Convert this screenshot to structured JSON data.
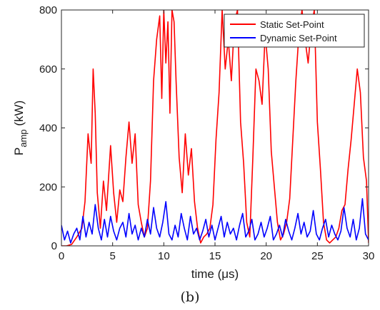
{
  "chart_data": {
    "type": "line",
    "xlabel": "time (μs)",
    "ylabel_main": "P",
    "ylabel_sub": "amp",
    "ylabel_unit": " (kW)",
    "xlim": [
      0,
      30
    ],
    "ylim": [
      0,
      800
    ],
    "xticks": [
      0,
      5,
      10,
      15,
      20,
      25,
      30
    ],
    "yticks": [
      0,
      200,
      400,
      600,
      800
    ],
    "grid": false,
    "legend_position": "top-right",
    "caption": "(b)",
    "series": [
      {
        "name": "Static Set-Point",
        "color": "#ff0000",
        "x": [
          0,
          0.5,
          1,
          1.5,
          2,
          2.3,
          2.6,
          2.9,
          3.1,
          3.3,
          3.5,
          3.8,
          4.1,
          4.4,
          4.8,
          5.1,
          5.4,
          5.7,
          6,
          6.3,
          6.6,
          6.9,
          7.2,
          7.5,
          7.8,
          8.1,
          8.4,
          8.7,
          9,
          9.3,
          9.6,
          9.8,
          10,
          10.2,
          10.4,
          10.6,
          10.8,
          11,
          11.2,
          11.5,
          11.8,
          12.1,
          12.4,
          12.7,
          13,
          13.3,
          13.6,
          13.9,
          14.2,
          14.5,
          14.8,
          15.1,
          15.4,
          15.7,
          16,
          16.3,
          16.6,
          16.9,
          17.2,
          17.5,
          17.8,
          18.1,
          18.4,
          18.7,
          19,
          19.3,
          19.6,
          19.9,
          20.2,
          20.5,
          20.8,
          21.1,
          21.4,
          21.7,
          22,
          22.3,
          22.6,
          22.9,
          23.2,
          23.5,
          23.8,
          24.1,
          24.4,
          24.7,
          25,
          25.3,
          25.6,
          25.9,
          26.2,
          26.5,
          26.8,
          27.1,
          27.4,
          27.7,
          28,
          28.3,
          28.6,
          28.9,
          29.2,
          29.5,
          29.8,
          30
        ],
        "y": [
          0,
          0,
          5,
          30,
          60,
          150,
          380,
          280,
          600,
          450,
          180,
          60,
          220,
          120,
          340,
          180,
          80,
          190,
          150,
          300,
          420,
          280,
          380,
          140,
          80,
          30,
          60,
          220,
          560,
          700,
          780,
          500,
          800,
          620,
          760,
          450,
          800,
          760,
          560,
          300,
          180,
          380,
          240,
          330,
          150,
          60,
          10,
          30,
          40,
          60,
          140,
          360,
          520,
          800,
          600,
          700,
          560,
          760,
          800,
          420,
          280,
          80,
          30,
          300,
          600,
          560,
          480,
          720,
          600,
          320,
          200,
          80,
          20,
          40,
          80,
          160,
          360,
          560,
          720,
          800,
          700,
          620,
          740,
          800,
          420,
          260,
          80,
          20,
          10,
          20,
          30,
          60,
          120,
          140,
          260,
          360,
          480,
          600,
          520,
          300,
          220,
          10
        ]
      },
      {
        "name": "Dynamic Set-Point",
        "color": "#0000ff",
        "x": [
          0,
          0.3,
          0.6,
          0.9,
          1.2,
          1.5,
          1.8,
          2.1,
          2.4,
          2.7,
          3,
          3.3,
          3.6,
          3.9,
          4.2,
          4.5,
          4.8,
          5.1,
          5.4,
          5.7,
          6,
          6.3,
          6.6,
          6.9,
          7.2,
          7.5,
          7.8,
          8.1,
          8.4,
          8.7,
          9,
          9.3,
          9.6,
          9.9,
          10.2,
          10.5,
          10.8,
          11.1,
          11.4,
          11.7,
          12,
          12.3,
          12.6,
          12.9,
          13.2,
          13.5,
          13.8,
          14.1,
          14.4,
          14.7,
          15,
          15.3,
          15.6,
          15.9,
          16.2,
          16.5,
          16.8,
          17.1,
          17.4,
          17.7,
          18,
          18.3,
          18.6,
          18.9,
          19.2,
          19.5,
          19.8,
          20.1,
          20.4,
          20.7,
          21,
          21.3,
          21.6,
          21.9,
          22.2,
          22.5,
          22.8,
          23.1,
          23.4,
          23.7,
          24,
          24.3,
          24.6,
          24.9,
          25.2,
          25.5,
          25.8,
          26.1,
          26.4,
          26.7,
          27,
          27.3,
          27.6,
          27.9,
          28.2,
          28.5,
          28.8,
          29.1,
          29.4,
          29.7,
          30
        ],
        "y": [
          70,
          20,
          50,
          10,
          40,
          60,
          20,
          100,
          30,
          80,
          40,
          140,
          60,
          20,
          90,
          30,
          100,
          50,
          20,
          60,
          80,
          30,
          110,
          40,
          70,
          20,
          60,
          30,
          90,
          40,
          130,
          60,
          30,
          80,
          150,
          40,
          20,
          70,
          30,
          110,
          60,
          20,
          100,
          40,
          60,
          20,
          50,
          90,
          30,
          70,
          20,
          60,
          100,
          30,
          80,
          40,
          60,
          20,
          70,
          110,
          30,
          50,
          90,
          20,
          40,
          80,
          30,
          60,
          100,
          20,
          40,
          70,
          30,
          90,
          50,
          20,
          60,
          110,
          40,
          80,
          30,
          50,
          120,
          40,
          20,
          60,
          90,
          30,
          70,
          40,
          20,
          50,
          130,
          60,
          30,
          90,
          20,
          60,
          160,
          40,
          20
        ]
      }
    ]
  }
}
